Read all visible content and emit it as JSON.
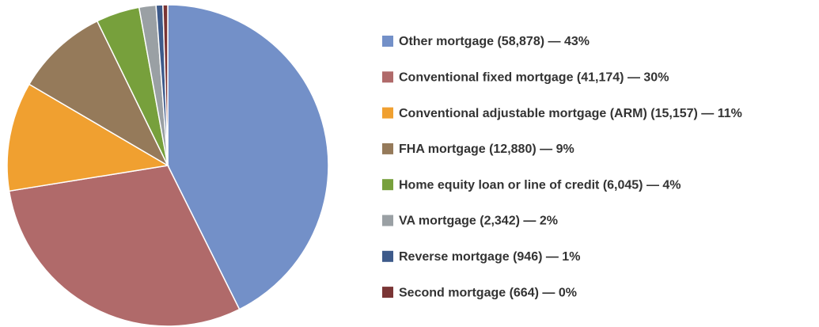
{
  "chart_data": {
    "type": "pie",
    "categories": [
      "Other mortgage (58,878) — 43%",
      "Conventional fixed mortgage (41,174) — 30%",
      "Conventional adjustable mortgage (ARM) (15,157) — 11%",
      "FHA mortgage (12,880) — 9%",
      "Home equity loan or line of credit (6,045) — 4%",
      "VA mortgage (2,342) — 2%",
      "Reverse mortgage (946) — 1%",
      "Second mortgage (664) — 0%"
    ],
    "values": [
      58878,
      41174,
      15157,
      12880,
      6045,
      2342,
      946,
      664
    ],
    "colors": [
      "#7390c8",
      "#b06a6a",
      "#f0a030",
      "#957a5a",
      "#77a03c",
      "#9aa0a4",
      "#3d5a8a",
      "#7a3535"
    ],
    "legend": "right"
  }
}
